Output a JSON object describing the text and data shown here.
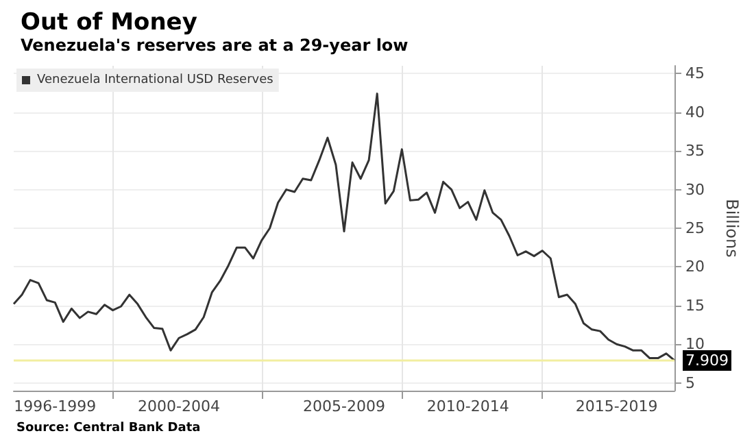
{
  "chart_data": {
    "type": "line",
    "title": "Out of Money",
    "subtitle": "Venezuela's reserves are at a 29-year low",
    "ylabel": "Billions",
    "annotations": [
      "Source: Central Bank Data"
    ],
    "categories": [
      null,
      null,
      null,
      null,
      null,
      "1996-1999",
      null,
      null,
      null,
      null,
      null,
      null,
      null,
      null,
      null,
      null,
      null,
      null,
      null,
      null,
      "2000-2004",
      null,
      null,
      null,
      null,
      null,
      null,
      null,
      null,
      null,
      null,
      null,
      null,
      null,
      null,
      null,
      null,
      null,
      null,
      null,
      "2005-2009",
      null,
      null,
      null,
      null,
      null,
      null,
      null,
      null,
      null,
      null,
      null,
      null,
      null,
      null,
      "2010-2014",
      null,
      null,
      null,
      null,
      null,
      null,
      null,
      null,
      null,
      null,
      null,
      null,
      null,
      null,
      null,
      null,
      null,
      "2015-2019",
      null,
      null,
      null,
      null,
      null,
      null,
      null
    ],
    "ylim": [
      4,
      46
    ],
    "yticks": [
      5,
      10,
      15,
      20,
      25,
      30,
      35,
      40,
      45
    ],
    "grid": true,
    "legend": "top left",
    "marker": "none",
    "line_style": "solid",
    "ref_lines": [
      {
        "axis": "y",
        "value": 7.909,
        "color": "#f2eea0"
      }
    ],
    "series": [
      {
        "name": "Venezuela International USD Reserves",
        "color": "#333333",
        "values": [
          15.2,
          16.4,
          18.3,
          17.9,
          15.7,
          15.4,
          12.9,
          14.6,
          13.4,
          14.2,
          13.9,
          15.1,
          14.4,
          14.9,
          16.4,
          15.2,
          13.5,
          12.1,
          12.0,
          9.2,
          10.8,
          11.3,
          11.9,
          13.5,
          16.7,
          18.2,
          20.2,
          22.5,
          22.5,
          21.1,
          23.4,
          25.0,
          28.3,
          30.0,
          29.7,
          31.4,
          31.2,
          33.8,
          36.7,
          33.2,
          24.6,
          33.5,
          31.4,
          33.8,
          42.4,
          28.2,
          29.8,
          35.2,
          28.6,
          28.7,
          29.6,
          27.0,
          31.0,
          30.0,
          27.6,
          28.4,
          26.1,
          29.9,
          27.0,
          26.1,
          24.0,
          21.5,
          22.0,
          21.4,
          22.1,
          21.1,
          16.1,
          16.4,
          15.2,
          12.7,
          11.9,
          11.7,
          10.6,
          10.0,
          9.7,
          9.2,
          9.2,
          8.2,
          8.2,
          8.8,
          7.909
        ],
        "value_labels": [
          null,
          null,
          null,
          null,
          null,
          null,
          null,
          null,
          null,
          null,
          null,
          null,
          null,
          null,
          null,
          null,
          null,
          null,
          null,
          null,
          null,
          null,
          null,
          null,
          null,
          null,
          null,
          null,
          null,
          null,
          null,
          null,
          null,
          null,
          null,
          null,
          null,
          null,
          null,
          null,
          null,
          null,
          null,
          null,
          null,
          null,
          null,
          null,
          null,
          null,
          null,
          null,
          null,
          null,
          null,
          null,
          null,
          null,
          null,
          null,
          null,
          null,
          null,
          null,
          null,
          null,
          null,
          null,
          null,
          null,
          null,
          null,
          null,
          null,
          null,
          null,
          null,
          null,
          null,
          null,
          "7.909"
        ]
      }
    ]
  }
}
